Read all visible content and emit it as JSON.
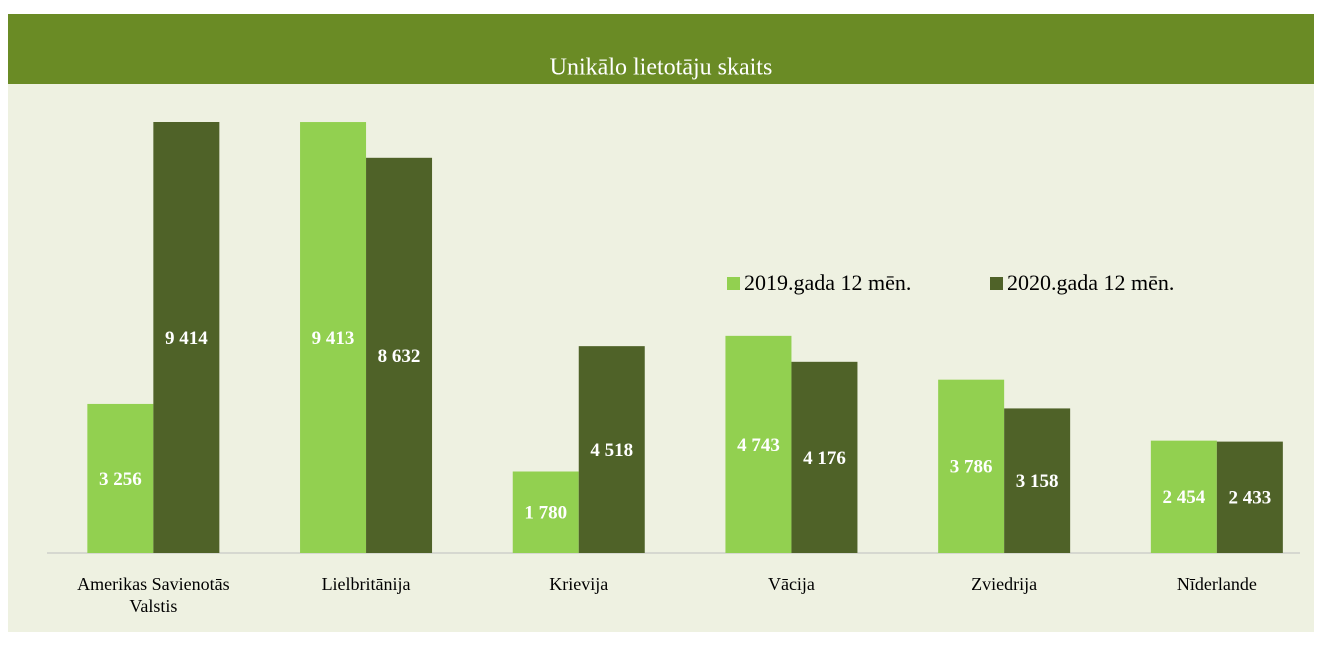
{
  "chart_data": {
    "type": "bar",
    "title": "Unikālo lietotāju skaits",
    "categories": [
      "Amerikas Savienotās Valstis",
      "Lielbritānija",
      "Krievija",
      "Vācija",
      "Zviedrija",
      "Nīderlande"
    ],
    "series": [
      {
        "name": "2019.gada 12 mēn.",
        "color": "#92d050",
        "values": [
          3256,
          9413,
          1780,
          4743,
          3786,
          2454
        ],
        "value_labels": [
          "3 256",
          "9 413",
          "1 780",
          "4 743",
          "3 786",
          "2 454"
        ]
      },
      {
        "name": "2020.gada 12 mēn.",
        "color": "#4f6228",
        "values": [
          9414,
          8632,
          4518,
          4176,
          3158,
          2433
        ],
        "value_labels": [
          "9 414",
          "8 632",
          "4 518",
          "4 176",
          "3 158",
          "2 433"
        ]
      }
    ]
  }
}
